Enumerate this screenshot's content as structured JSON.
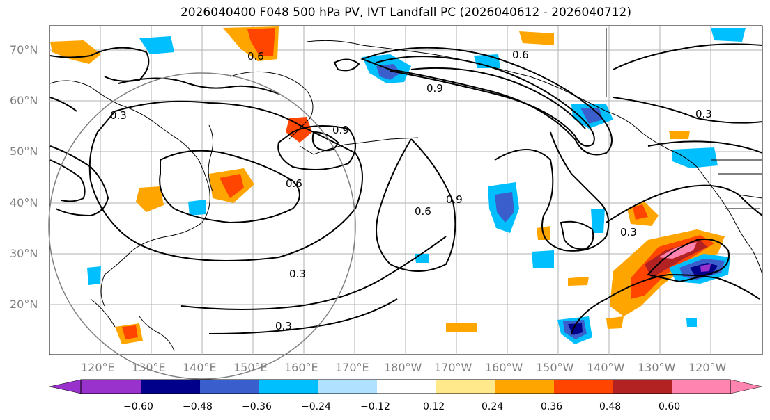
{
  "title": "2026040400 F048 500 hPa PV, IVT Landfall PC (2026040612 - 2026040712)",
  "latitude_labels": [
    "70°N",
    "60°N",
    "50°N",
    "40°N",
    "30°N",
    "20°N"
  ],
  "longitude_labels": [
    "120°E",
    "130°E",
    "140°E",
    "150°E",
    "160°E",
    "170°E",
    "180°W",
    "170°W",
    "160°W",
    "150°W",
    "140°W",
    "130°W",
    "120°W"
  ],
  "contour_labels": [
    "0.3",
    "0.6",
    "0.9"
  ],
  "colorbar": {
    "ticks": [
      "−0.60",
      "−0.48",
      "−0.36",
      "−0.24",
      "−0.12",
      "0.12",
      "0.24",
      "0.36",
      "0.48",
      "0.60"
    ],
    "colors": [
      "#9932cc",
      "#00008b",
      "#3a5fcd",
      "#00bfff",
      "#b0e2ff",
      "#ffffff",
      "#ffe98a",
      "#ffa500",
      "#ff4500",
      "#b22222",
      "#ff85b0"
    ]
  },
  "colors": {
    "land_outline": "#000000",
    "grid": "#b0b0b0",
    "contour": "#000000",
    "circle": "#808080"
  }
}
